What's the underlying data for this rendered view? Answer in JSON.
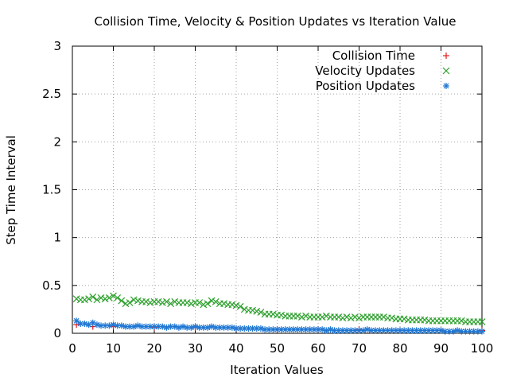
{
  "chart_data": {
    "type": "scatter",
    "title": "Collision Time, Velocity & Position Updates vs Iteration Value",
    "xlabel": "Iteration Values",
    "ylabel": "Step Time Interval",
    "xlim": [
      0,
      100
    ],
    "ylim": [
      0,
      3
    ],
    "x_ticks": [
      0,
      10,
      20,
      30,
      40,
      50,
      60,
      70,
      80,
      90,
      100
    ],
    "y_ticks": [
      0,
      0.5,
      1,
      1.5,
      2,
      2.5,
      3
    ],
    "y_tick_labels": [
      "0",
      "0.5",
      "1",
      "1.5",
      "2",
      "2.5",
      "3"
    ],
    "grid": true,
    "legend_position": "top-right",
    "series": [
      {
        "name": "Collision Time",
        "marker": "plus",
        "color": "#e41a1c",
        "x": [
          1,
          5,
          10,
          20,
          30,
          40,
          50,
          60,
          70,
          80,
          90,
          100
        ],
        "y": [
          0.09,
          0.07,
          0.07,
          0.06,
          0.06,
          0.05,
          0.04,
          0.04,
          0.04,
          0.03,
          0.03,
          0.03
        ]
      },
      {
        "name": "Velocity Updates",
        "marker": "cross",
        "color": "#2ca02c",
        "x": [
          1,
          2,
          3,
          4,
          5,
          6,
          7,
          8,
          9,
          10,
          11,
          12,
          13,
          14,
          15,
          16,
          17,
          18,
          19,
          20,
          21,
          22,
          23,
          24,
          25,
          26,
          27,
          28,
          29,
          30,
          31,
          32,
          33,
          34,
          35,
          36,
          37,
          38,
          39,
          40,
          41,
          42,
          43,
          44,
          45,
          46,
          47,
          48,
          49,
          50,
          51,
          52,
          53,
          54,
          55,
          56,
          57,
          58,
          59,
          60,
          61,
          62,
          63,
          64,
          65,
          66,
          67,
          68,
          69,
          70,
          71,
          72,
          73,
          74,
          75,
          76,
          77,
          78,
          79,
          80,
          81,
          82,
          83,
          84,
          85,
          86,
          87,
          88,
          89,
          90,
          91,
          92,
          93,
          94,
          95,
          96,
          97,
          98,
          99,
          100
        ],
        "y": [
          0.36,
          0.35,
          0.35,
          0.36,
          0.38,
          0.35,
          0.37,
          0.36,
          0.37,
          0.39,
          0.37,
          0.34,
          0.31,
          0.32,
          0.35,
          0.34,
          0.33,
          0.33,
          0.32,
          0.33,
          0.33,
          0.32,
          0.33,
          0.31,
          0.33,
          0.32,
          0.32,
          0.32,
          0.31,
          0.32,
          0.32,
          0.3,
          0.31,
          0.34,
          0.33,
          0.31,
          0.31,
          0.3,
          0.3,
          0.29,
          0.28,
          0.25,
          0.24,
          0.24,
          0.23,
          0.22,
          0.2,
          0.2,
          0.2,
          0.19,
          0.19,
          0.18,
          0.18,
          0.18,
          0.18,
          0.17,
          0.18,
          0.17,
          0.17,
          0.17,
          0.17,
          0.18,
          0.17,
          0.17,
          0.17,
          0.16,
          0.17,
          0.16,
          0.17,
          0.16,
          0.17,
          0.17,
          0.17,
          0.17,
          0.17,
          0.17,
          0.16,
          0.16,
          0.15,
          0.15,
          0.15,
          0.14,
          0.14,
          0.14,
          0.14,
          0.14,
          0.13,
          0.13,
          0.13,
          0.13,
          0.13,
          0.13,
          0.13,
          0.13,
          0.13,
          0.12,
          0.12,
          0.12,
          0.12,
          0.12
        ]
      },
      {
        "name": "Position Updates",
        "marker": "star",
        "color": "#1f77d4",
        "x": [
          1,
          2,
          3,
          4,
          5,
          6,
          7,
          8,
          9,
          10,
          11,
          12,
          13,
          14,
          15,
          16,
          17,
          18,
          19,
          20,
          21,
          22,
          23,
          24,
          25,
          26,
          27,
          28,
          29,
          30,
          31,
          32,
          33,
          34,
          35,
          36,
          37,
          38,
          39,
          40,
          41,
          42,
          43,
          44,
          45,
          46,
          47,
          48,
          49,
          50,
          51,
          52,
          53,
          54,
          55,
          56,
          57,
          58,
          59,
          60,
          61,
          62,
          63,
          64,
          65,
          66,
          67,
          68,
          69,
          70,
          71,
          72,
          73,
          74,
          75,
          76,
          77,
          78,
          79,
          80,
          81,
          82,
          83,
          84,
          85,
          86,
          87,
          88,
          89,
          90,
          91,
          92,
          93,
          94,
          95,
          96,
          97,
          98,
          99,
          100
        ],
        "y": [
          0.13,
          0.1,
          0.1,
          0.09,
          0.11,
          0.09,
          0.08,
          0.08,
          0.08,
          0.09,
          0.08,
          0.08,
          0.07,
          0.07,
          0.07,
          0.08,
          0.07,
          0.07,
          0.07,
          0.07,
          0.07,
          0.07,
          0.06,
          0.07,
          0.07,
          0.06,
          0.07,
          0.06,
          0.06,
          0.07,
          0.06,
          0.06,
          0.06,
          0.07,
          0.06,
          0.06,
          0.06,
          0.06,
          0.06,
          0.05,
          0.05,
          0.05,
          0.05,
          0.05,
          0.05,
          0.05,
          0.04,
          0.04,
          0.04,
          0.04,
          0.04,
          0.04,
          0.04,
          0.04,
          0.04,
          0.04,
          0.04,
          0.04,
          0.04,
          0.04,
          0.04,
          0.03,
          0.04,
          0.03,
          0.03,
          0.03,
          0.03,
          0.03,
          0.03,
          0.03,
          0.03,
          0.04,
          0.03,
          0.03,
          0.03,
          0.03,
          0.03,
          0.03,
          0.03,
          0.03,
          0.03,
          0.03,
          0.03,
          0.03,
          0.03,
          0.03,
          0.03,
          0.03,
          0.03,
          0.03,
          0.02,
          0.02,
          0.02,
          0.03,
          0.02,
          0.02,
          0.02,
          0.02,
          0.02,
          0.02
        ]
      }
    ]
  }
}
